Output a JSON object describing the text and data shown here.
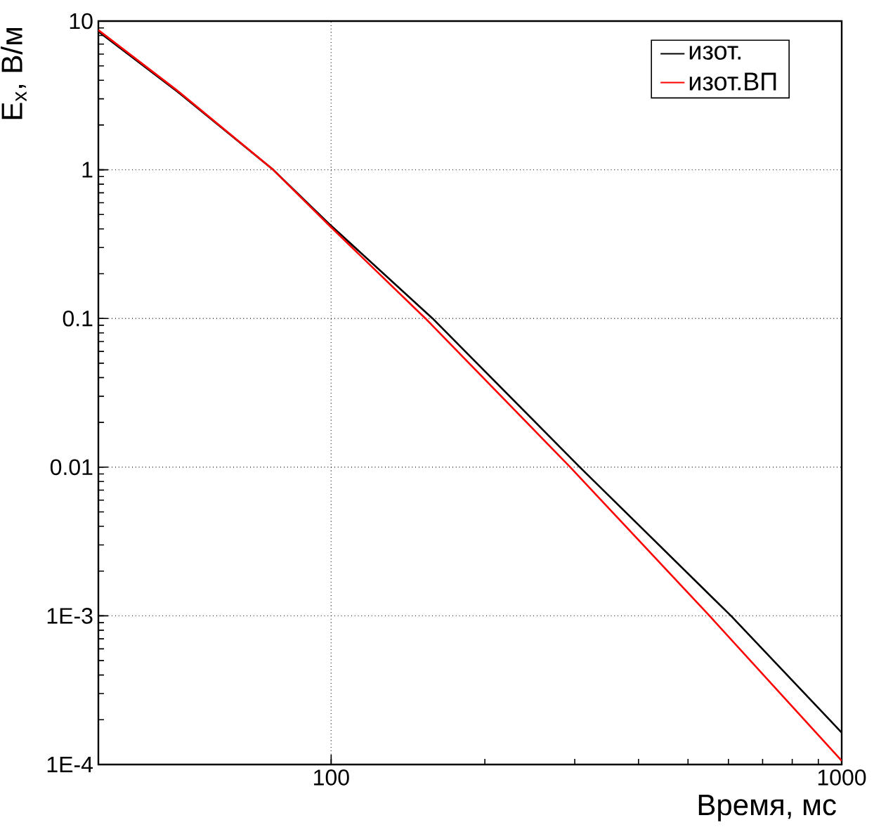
{
  "chart_data": {
    "type": "line",
    "xlabel": "Время, мс",
    "ylabel": "E$_{x}$, В/м",
    "log": "xy",
    "grid": true,
    "legend": "top right",
    "xlim": [
      35,
      1000
    ],
    "ylim": [
      0.0001,
      10
    ],
    "xticks": [
      100,
      1000
    ],
    "yticks": [
      {
        "value": 0.0001,
        "label": "1E-4"
      },
      {
        "value": 0.001,
        "label": "1E-3"
      },
      0.01,
      0.1,
      1,
      10
    ],
    "series": [
      {
        "name": "изот.",
        "color": "#000000",
        "x": [
          35,
          50,
          77,
          100,
          158,
          307,
          607,
          1000
        ],
        "values": [
          8.5,
          3.35,
          1,
          0.42,
          0.1,
          0.01,
          0.001,
          0.000164
        ]
      },
      {
        "name": "изот.ВП",
        "color": "#ff0000",
        "x": [
          35,
          50,
          77,
          100,
          153,
          294,
          551,
          1000
        ],
        "values": [
          8.7,
          3.4,
          1,
          0.41,
          0.1,
          0.01,
          0.001,
          0.000106
        ]
      }
    ]
  }
}
